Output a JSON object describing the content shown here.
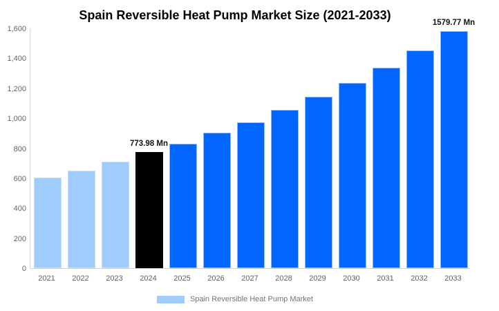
{
  "title": "Spain Reversible Heat Pump Market Size (2021-2033)",
  "legend": {
    "label": "Spain Reversible Heat Pump Market"
  },
  "colors": {
    "bar_fill": {
      "light": "#a0ccfb",
      "black": "#000000",
      "blue": "#0066ff"
    },
    "bar_border": {
      "light": "#c3dffd",
      "blue": "#8fbef4"
    },
    "axis_line": "#d9d9d9",
    "tick_text": "#666666",
    "xlabel_text": "#606060",
    "legend_text": "#737373",
    "annotation_text": "#111111",
    "title_text": "#000000"
  },
  "chart_data": {
    "type": "bar",
    "title": "Spain Reversible Heat Pump Market Size (2021-2033)",
    "xlabel": "",
    "ylabel": "",
    "unit": "Mn",
    "categories": [
      "2021",
      "2022",
      "2023",
      "2024",
      "2025",
      "2026",
      "2027",
      "2028",
      "2029",
      "2030",
      "2031",
      "2032",
      "2033"
    ],
    "series": [
      {
        "name": "Spain Reversible Heat Pump Market",
        "values": [
          604,
          651,
          710,
          773.98,
          831,
          903,
          974,
          1056,
          1144,
          1237,
          1338,
          1453,
          1579.77
        ]
      }
    ],
    "bar_colors": [
      "light",
      "light",
      "light",
      "black",
      "blue",
      "blue",
      "blue",
      "blue",
      "blue",
      "blue",
      "blue",
      "blue",
      "blue"
    ],
    "annotations": [
      {
        "index": 3,
        "text": "773.98 Mn"
      },
      {
        "index": 12,
        "text": "1579.77 Mn"
      }
    ],
    "ylim": [
      0,
      1600
    ],
    "ytick_step": 200,
    "ytick_labels": [
      "0",
      "200",
      "400",
      "600",
      "800",
      "1,000",
      "1,200",
      "1,400",
      "1,600"
    ],
    "grid": false,
    "legend_position": "bottom"
  }
}
